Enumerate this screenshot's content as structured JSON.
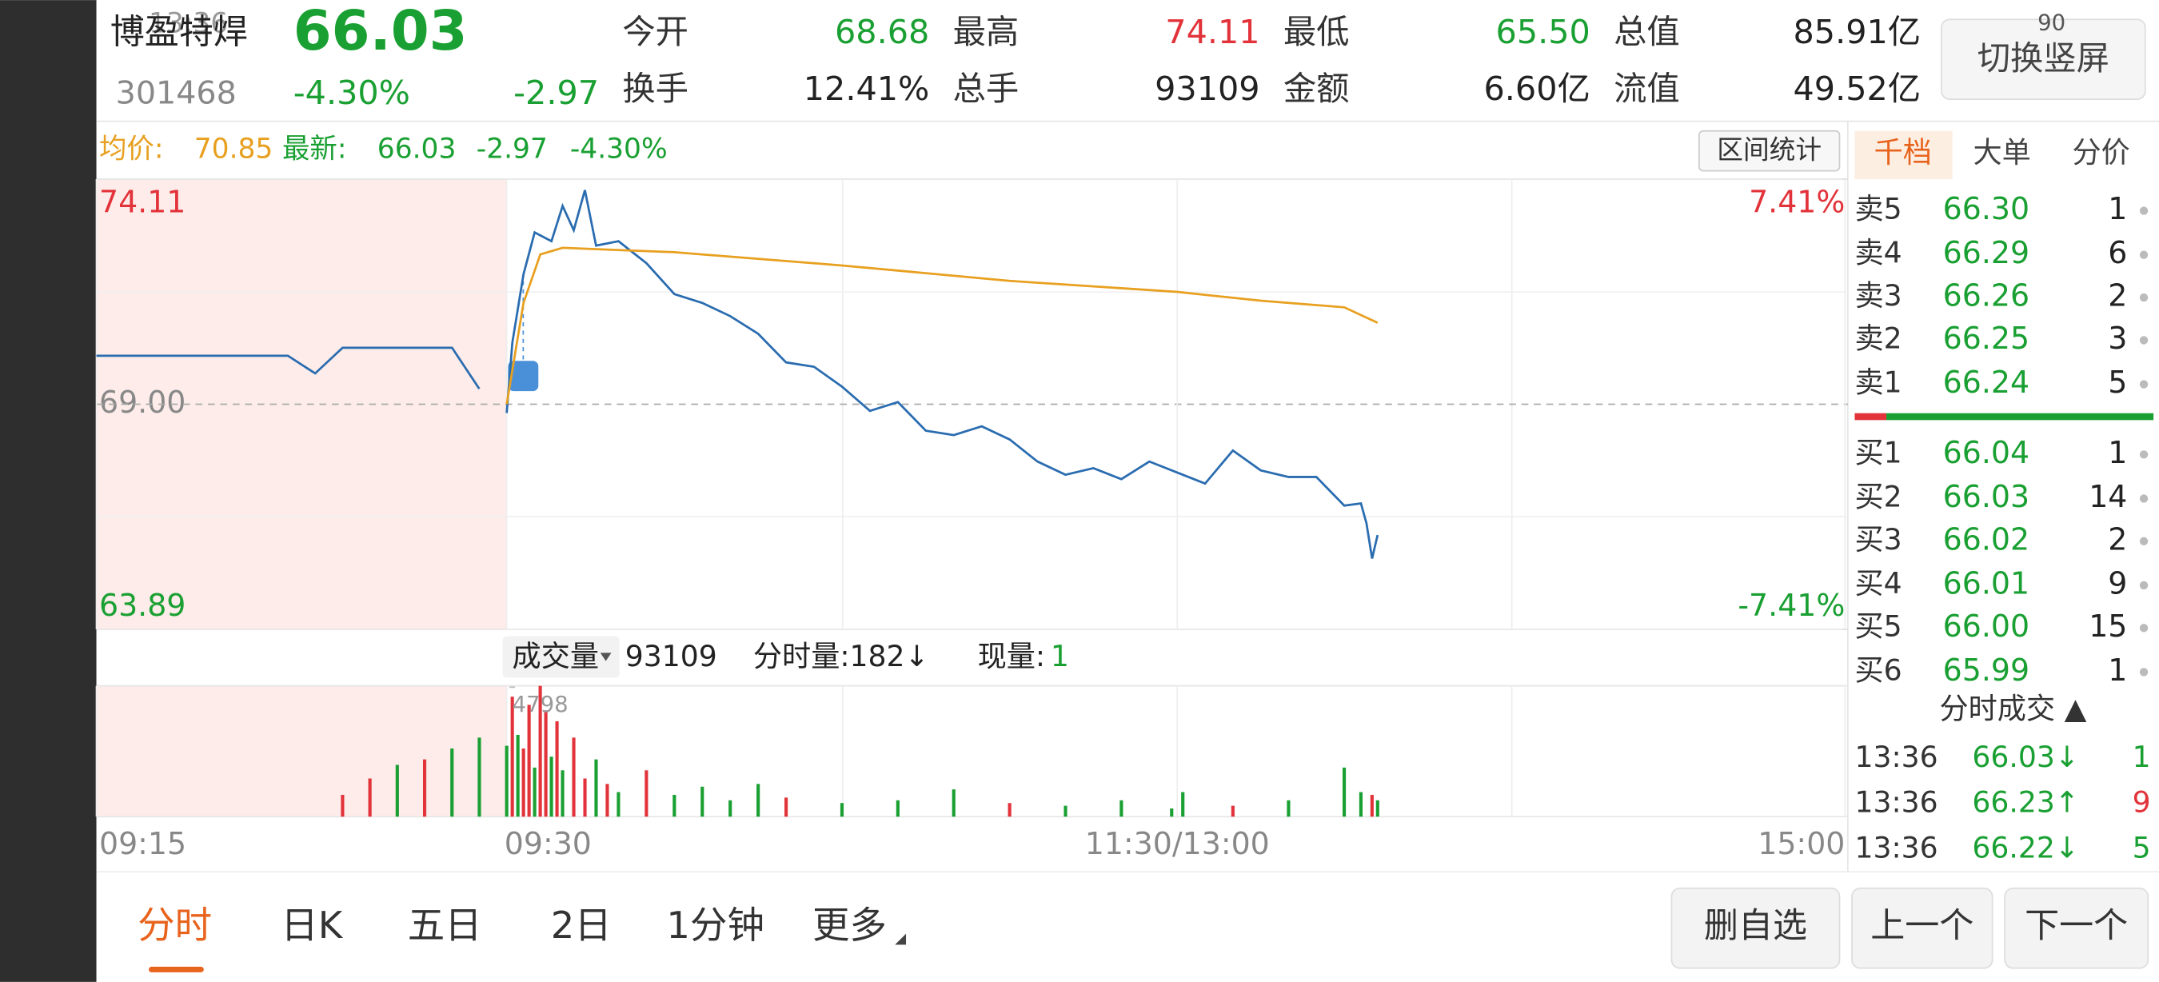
{
  "status": {
    "time": "13:36",
    "battery": "90"
  },
  "quote": {
    "name": "博盈特焊",
    "price": "66.03",
    "code": "301468",
    "change_pct": "-4.30%",
    "change": "-2.97",
    "fields": [
      {
        "label": "今开",
        "value": "68.68"
      },
      {
        "label": "最高",
        "value": "74.11"
      },
      {
        "label": "最低",
        "value": "65.50"
      },
      {
        "label": "总值",
        "value": "85.91亿"
      },
      {
        "label": "换手",
        "value": "12.41%"
      },
      {
        "label": "总手",
        "value": "93109"
      },
      {
        "label": "金额",
        "value": "6.60亿"
      },
      {
        "label": "流值",
        "value": "49.52亿"
      }
    ]
  },
  "switch_button": "切换竖屏",
  "range_button": "区间统计",
  "info": {
    "avg_label": "均价:",
    "avg": "70.85",
    "last_label": "最新:",
    "last": "66.03",
    "change": "-2.97",
    "change_pct": "-4.30%"
  },
  "chart_data": [
    {
      "type": "line",
      "ylim": [
        63.89,
        74.11
      ],
      "yticks": [
        74.11,
        {
          "value": 69,
          "label": "69.00"
        },
        63.89
      ],
      "y2lim": [
        -7.41,
        7.41
      ],
      "y2ticks": [
        {
          "value": 7.41,
          "label": "7.41%"
        },
        {
          "value": -7.41,
          "label": "-7.41%"
        }
      ],
      "xticks": [
        "09:15",
        "09:30",
        {
          "value": "11:30",
          "label": "11:30/13:00"
        },
        "15:00"
      ],
      "series": [
        {
          "color": "#2a6cb0",
          "x": [
            "09:15",
            "09:22",
            "09:23",
            "09:24",
            "09:28",
            "09:29"
          ],
          "values": [
            70.1,
            70.1,
            69.7,
            70.28,
            70.28,
            69.35
          ]
        },
        {
          "color": "#2a6cb0",
          "x": [
            "09:30",
            "09:31",
            "09:33",
            "09:35",
            "09:38",
            "09:40",
            "09:42",
            "09:44",
            "09:46",
            "09:50",
            "09:55",
            "10:00",
            "10:05",
            "10:10",
            "10:15",
            "10:20",
            "10:25",
            "10:30",
            "10:35",
            "10:40",
            "10:45",
            "10:50",
            "10:55",
            "11:00",
            "11:05",
            "11:10",
            "11:15",
            "11:20",
            "11:25",
            "11:30",
            "13:05",
            "13:10",
            "13:15",
            "13:20",
            "13:25",
            "13:30",
            "13:33",
            "13:34",
            "13:35",
            "13:36"
          ],
          "values": [
            68.8,
            70.4,
            71.95,
            72.9,
            72.7,
            73.5,
            72.95,
            73.86,
            72.6,
            72.7,
            72.2,
            71.5,
            71.3,
            71.0,
            70.6,
            69.95,
            69.85,
            69.4,
            68.85,
            69.05,
            68.4,
            68.3,
            68.5,
            68.2,
            67.7,
            67.4,
            67.55,
            67.3,
            67.7,
            67.45,
            67.2,
            67.95,
            67.5,
            67.35,
            67.35,
            66.7,
            66.75,
            66.3,
            65.5,
            66.03
          ]
        },
        {
          "color": "#e8a020",
          "x": [
            "09:30",
            "09:33",
            "09:36",
            "09:40",
            "10:00",
            "10:30",
            "11:00",
            "11:30",
            "13:15",
            "13:30",
            "13:36"
          ],
          "values": [
            69.0,
            71.3,
            72.4,
            72.55,
            72.45,
            72.15,
            71.8,
            71.55,
            71.35,
            71.2,
            70.85
          ]
        }
      ]
    },
    {
      "type": "bar",
      "title": "成交量",
      "total": "93109",
      "minute_volume": "分时量:182↓",
      "current_label": "现量:",
      "current": "1",
      "ylim": [
        0,
        4798
      ],
      "x": [
        "09:24",
        "09:25",
        "09:26",
        "09:27",
        "09:28",
        "09:29",
        "09:30",
        "09:31",
        "09:32",
        "09:33",
        "09:34",
        "09:35",
        "09:36",
        "09:37",
        "09:38",
        "09:39",
        "09:40",
        "09:42",
        "09:44",
        "09:46",
        "09:48",
        "09:50",
        "09:55",
        "10:00",
        "10:05",
        "10:10",
        "10:15",
        "10:20",
        "10:30",
        "10:40",
        "10:50",
        "11:00",
        "11:10",
        "11:20",
        "11:29",
        "13:01",
        "13:10",
        "13:20",
        "13:30",
        "13:33",
        "13:35",
        "13:36"
      ],
      "values": [
        800,
        1400,
        1900,
        2100,
        2500,
        2900,
        2600,
        4400,
        3000,
        2500,
        4100,
        1800,
        4798,
        3900,
        2200,
        3500,
        1700,
        2900,
        1400,
        2100,
        1200,
        900,
        1700,
        800,
        1100,
        600,
        1200,
        700,
        500,
        600,
        1000,
        500,
        400,
        600,
        300,
        900,
        400,
        600,
        1800,
        900,
        800,
        600
      ],
      "colors": [
        "#e2333a",
        "#e2333a",
        "#1aa032",
        "#e2333a",
        "#1aa032",
        "#1aa032",
        "#1aa032",
        "#e2333a",
        "#1aa032",
        "#e2333a",
        "#e2333a",
        "#1aa032",
        "#e2333a",
        "#e2333a",
        "#1aa032",
        "#e2333a",
        "#1aa032",
        "#e2333a",
        "#e2333a",
        "#1aa032",
        "#e2333a",
        "#1aa032",
        "#e2333a",
        "#1aa032",
        "#1aa032",
        "#1aa032",
        "#1aa032",
        "#e2333a",
        "#1aa032",
        "#1aa032",
        "#1aa032",
        "#e2333a",
        "#1aa032",
        "#1aa032",
        "#1aa032",
        "#1aa032",
        "#e2333a",
        "#1aa032",
        "#1aa032",
        "#1aa032",
        "#e2333a",
        "#1aa032"
      ]
    }
  ],
  "order_book": {
    "tabs": [
      "千档",
      "大单",
      "分价"
    ],
    "asks": [
      [
        "卖5",
        "66.30",
        "1"
      ],
      [
        "卖4",
        "66.29",
        "6"
      ],
      [
        "卖3",
        "66.26",
        "2"
      ],
      [
        "卖2",
        "66.25",
        "3"
      ],
      [
        "卖1",
        "66.24",
        "5"
      ]
    ],
    "bids": [
      [
        "买1",
        "66.04",
        "1"
      ],
      [
        "买2",
        "66.03",
        "14"
      ],
      [
        "买3",
        "66.02",
        "2"
      ],
      [
        "买4",
        "66.01",
        "9"
      ],
      [
        "买5",
        "66.00",
        "15"
      ],
      [
        "买6",
        "65.99",
        "1"
      ]
    ]
  },
  "trades": {
    "title": "分时成交 ▲",
    "rows": [
      [
        "13:36",
        "66.03↓",
        "1"
      ],
      [
        "13:36",
        "66.23↑",
        "9"
      ],
      [
        "13:36",
        "66.22↓",
        "5"
      ]
    ]
  },
  "tabs": [
    "分时",
    "日K",
    "五日",
    "2日",
    "1分钟",
    "更多"
  ],
  "buttons": [
    "删自选",
    "上一个",
    "下一个"
  ]
}
